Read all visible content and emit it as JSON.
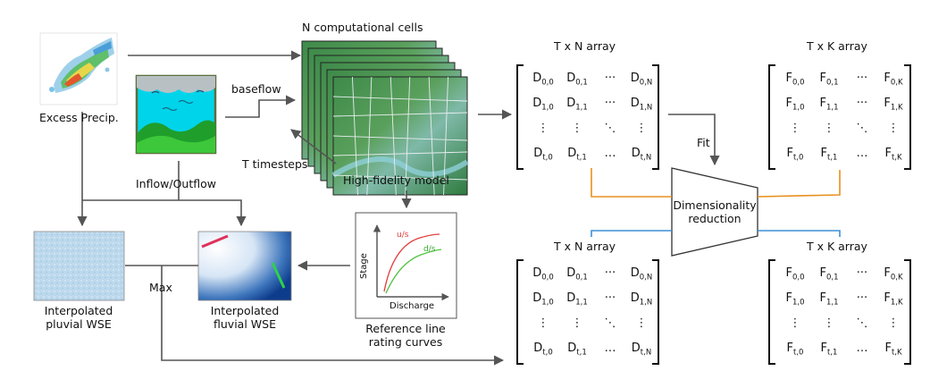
{
  "labels": {
    "excess_precip": "Excess Precip.",
    "baseflow": "baseflow",
    "n_cells": "N computational cells",
    "t_timesteps": "T timesteps",
    "high_fidelity": "High-fidelity model",
    "inflow_outflow": "Inflow/Outflow",
    "fit": "Fit",
    "dim_reduction_1": "Dimensionality",
    "dim_reduction_2": "reduction",
    "max": "Max",
    "pluvial_1": "Interpolated",
    "pluvial_2": "pluvial WSE",
    "fluvial_1": "Interpolated",
    "fluvial_2": "fluvial WSE",
    "rating_1": "Reference line",
    "rating_2": "rating curves",
    "stage": "Stage",
    "discharge": "Discharge",
    "us": "u/s",
    "ds": "d/s"
  },
  "matrices": [
    {
      "title": "T x N array",
      "symbol": "D",
      "last": "N"
    },
    {
      "title": "T x K array",
      "symbol": "F",
      "last": "K"
    },
    {
      "title": "T x N array",
      "symbol": "D",
      "last": "N"
    },
    {
      "title": "T x K array",
      "symbol": "F",
      "last": "K"
    }
  ],
  "colors": {
    "arrow": "#555555",
    "orange": "#e8901e",
    "blue": "#3d8fd6",
    "us_curve": "#e23b3b",
    "ds_curve": "#4cc23c"
  }
}
